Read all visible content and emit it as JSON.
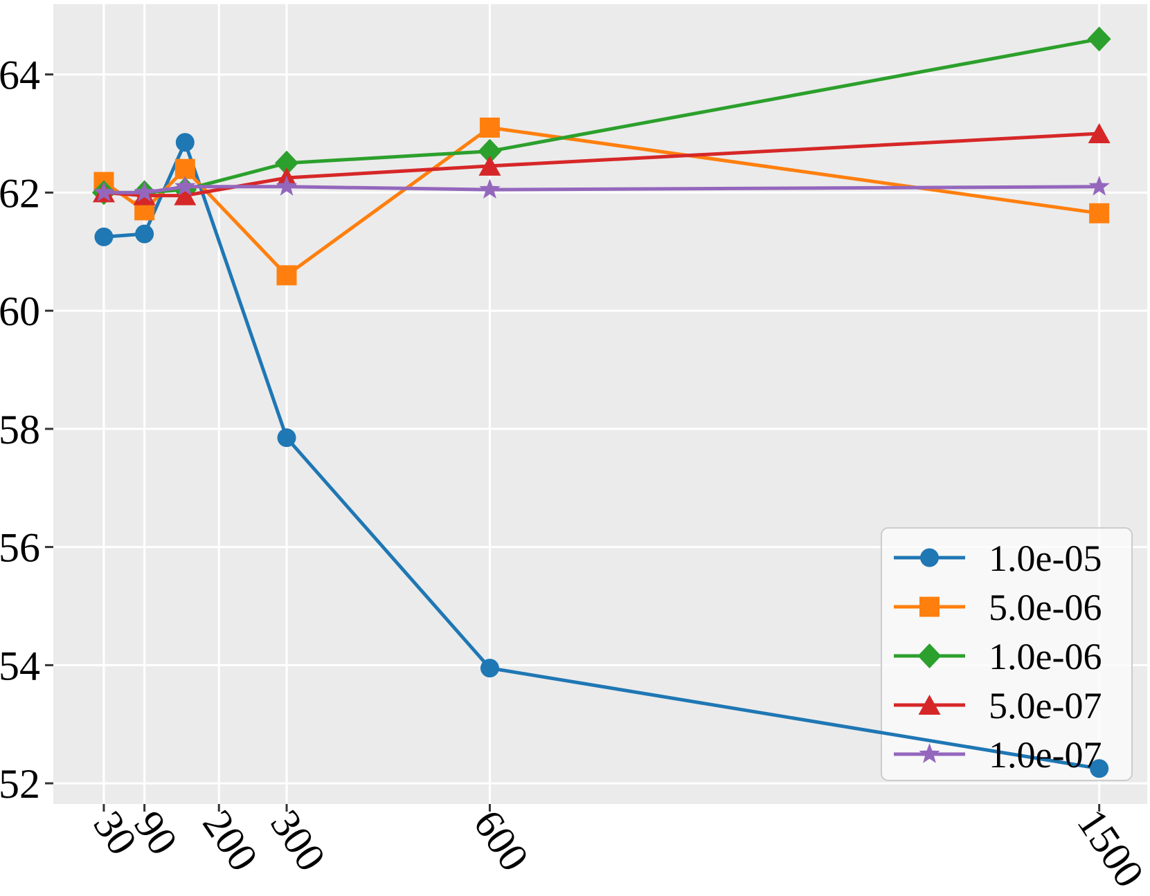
{
  "chart_data": {
    "type": "line",
    "x": [
      30,
      90,
      150,
      300,
      600,
      1500
    ],
    "series": [
      {
        "name": "1.0e-05",
        "color": "#1f77b4",
        "marker": "circle",
        "values": [
          61.25,
          61.3,
          62.85,
          57.85,
          53.95,
          52.25
        ]
      },
      {
        "name": "5.0e-06",
        "color": "#ff7f0e",
        "marker": "square",
        "values": [
          62.18,
          61.7,
          62.4,
          60.6,
          63.1,
          61.65
        ]
      },
      {
        "name": "1.0e-06",
        "color": "#2ca02c",
        "marker": "diamond",
        "values": [
          62.0,
          62.0,
          62.05,
          62.5,
          62.7,
          64.6
        ]
      },
      {
        "name": "5.0e-07",
        "color": "#d62728",
        "marker": "triangle",
        "values": [
          62.0,
          61.95,
          61.95,
          62.25,
          62.45,
          63.0
        ]
      },
      {
        "name": "1.0e-07",
        "color": "#9467bd",
        "marker": "star",
        "values": [
          62.0,
          62.0,
          62.1,
          62.1,
          62.05,
          62.1
        ]
      }
    ],
    "x_ticks": {
      "values": [
        30,
        90,
        200,
        300,
        600,
        1500
      ],
      "labels": [
        "30",
        "90",
        "200",
        "300",
        "600",
        "1500"
      ]
    },
    "y_ticks": {
      "values": [
        52,
        54,
        56,
        58,
        60,
        62,
        64
      ],
      "labels": [
        "52",
        "54",
        "56",
        "58",
        "60",
        "62",
        "64"
      ]
    },
    "xlim": [
      -44.6,
      1570.9
    ],
    "ylim": [
      51.65,
      65.19
    ],
    "grid": true,
    "title": "",
    "xlabel": "",
    "ylabel": "",
    "legend": {
      "position": "lower right",
      "entries": [
        "1.0e-05",
        "5.0e-06",
        "1.0e-06",
        "5.0e-07",
        "1.0e-07"
      ]
    },
    "colors": {
      "plot_background": "#ebebeb",
      "figure_background": "#ffffff",
      "gridline": "#ffffff",
      "tick_mark": "#333333",
      "tick_label": "#000000",
      "legend_background": "#fbfbfb",
      "legend_border": "#cccccc",
      "legend_text": "#000000"
    }
  }
}
